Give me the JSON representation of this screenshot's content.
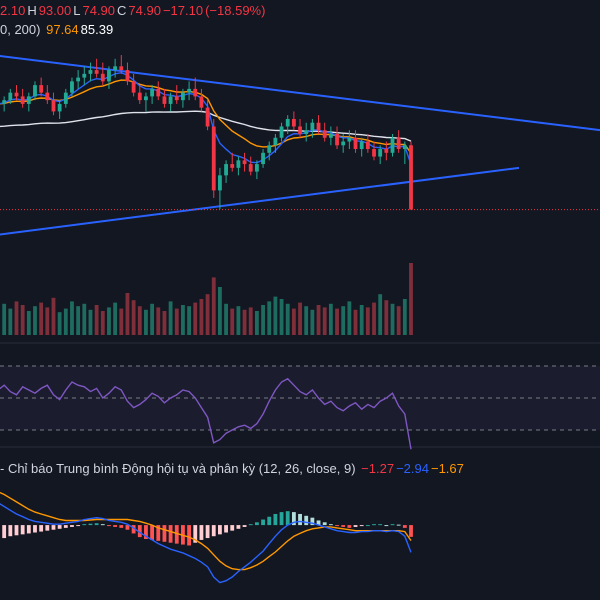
{
  "legend": {
    "ohlc": [
      {
        "text": "2.10",
        "color": "#f23645"
      },
      {
        "text": "H",
        "color": "#d1d4dc"
      },
      {
        "text": "93.00",
        "color": "#f23645"
      },
      {
        "text": "L",
        "color": "#d1d4dc"
      },
      {
        "text": "74.90",
        "color": "#f23645"
      },
      {
        "text": "C",
        "color": "#d1d4dc"
      },
      {
        "text": "74.90",
        "color": "#f23645"
      },
      {
        "text": "−17.10",
        "color": "#f23645"
      },
      {
        "text": "(−18.59%)",
        "color": "#f23645"
      }
    ],
    "ma_params": "0, 200)",
    "ma_values": [
      {
        "text": "97.64",
        "color": "#ff9800"
      },
      {
        "text": "85.39",
        "color": "#ffffff"
      }
    ],
    "macd_label": "- Chỉ báo Trung bình Động hội tụ và phân kỳ (12, 26, close, 9)",
    "macd_values": [
      {
        "text": "−1.27",
        "color": "#f23645"
      },
      {
        "text": "−2.94",
        "color": "#2962ff"
      },
      {
        "text": "−1.67",
        "color": "#ff9800"
      }
    ]
  },
  "chart_data": {
    "type": "candlestick",
    "colors": {
      "up": "#22ab94",
      "down": "#f23645",
      "volume_up": "#1e6b5f",
      "volume_down": "#7e2f3a",
      "ema_short": "#2962ff",
      "ema_long": "#ff9800",
      "ma200": "#e0e3eb",
      "trendline": "#2962ff",
      "rsi": "#7e57c2",
      "macd_line": "#2962ff",
      "signal_line": "#ff9800"
    },
    "price_range": [
      70,
      120
    ],
    "candles": [
      [
        104,
        106,
        102,
        103
      ],
      [
        103,
        105,
        101,
        104
      ],
      [
        104,
        107,
        103,
        106
      ],
      [
        106,
        108,
        104,
        105
      ],
      [
        105,
        107,
        102,
        103
      ],
      [
        103,
        106,
        101,
        105
      ],
      [
        105,
        109,
        104,
        108
      ],
      [
        108,
        110,
        105,
        106
      ],
      [
        106,
        108,
        103,
        104
      ],
      [
        104,
        106,
        100,
        101
      ],
      [
        101,
        104,
        99,
        103
      ],
      [
        103,
        107,
        102,
        106
      ],
      [
        106,
        110,
        105,
        109
      ],
      [
        109,
        112,
        107,
        110
      ],
      [
        110,
        113,
        108,
        111
      ],
      [
        111,
        114,
        109,
        112
      ],
      [
        112,
        115,
        110,
        111
      ],
      [
        111,
        114,
        108,
        109
      ],
      [
        109,
        113,
        107,
        112
      ],
      [
        112,
        115,
        110,
        113
      ],
      [
        113,
        116,
        111,
        112
      ],
      [
        112,
        114,
        108,
        109
      ],
      [
        109,
        111,
        105,
        106
      ],
      [
        106,
        108,
        103,
        104
      ],
      [
        104,
        106,
        101,
        105
      ],
      [
        105,
        108,
        103,
        107
      ],
      [
        107,
        109,
        104,
        105
      ],
      [
        105,
        107,
        102,
        103
      ],
      [
        103,
        106,
        101,
        105
      ],
      [
        105,
        108,
        103,
        104
      ],
      [
        104,
        107,
        102,
        106
      ],
      [
        106,
        109,
        104,
        107
      ],
      [
        107,
        110,
        104,
        105
      ],
      [
        105,
        107,
        101,
        102
      ],
      [
        102,
        104,
        96,
        97
      ],
      [
        97,
        99,
        78,
        80
      ],
      [
        80,
        86,
        75,
        84
      ],
      [
        84,
        88,
        82,
        87
      ],
      [
        87,
        90,
        85,
        86
      ],
      [
        86,
        89,
        84,
        88
      ],
      [
        88,
        90,
        85,
        87
      ],
      [
        87,
        89,
        84,
        85
      ],
      [
        85,
        88,
        83,
        87
      ],
      [
        87,
        91,
        86,
        90
      ],
      [
        90,
        93,
        88,
        92
      ],
      [
        92,
        95,
        90,
        94
      ],
      [
        94,
        98,
        93,
        97
      ],
      [
        97,
        100,
        95,
        99
      ],
      [
        99,
        101,
        96,
        97
      ],
      [
        97,
        99,
        94,
        95
      ],
      [
        95,
        98,
        93,
        96
      ],
      [
        96,
        99,
        94,
        98
      ],
      [
        98,
        100,
        95,
        96
      ],
      [
        96,
        98,
        93,
        94
      ],
      [
        94,
        97,
        92,
        95
      ],
      [
        95,
        97,
        91,
        92
      ],
      [
        92,
        95,
        90,
        93
      ],
      [
        93,
        96,
        91,
        94
      ],
      [
        94,
        96,
        90,
        91
      ],
      [
        91,
        94,
        89,
        93
      ],
      [
        93,
        95,
        90,
        91
      ],
      [
        91,
        93,
        88,
        89
      ],
      [
        89,
        92,
        87,
        91
      ],
      [
        91,
        93,
        88,
        90
      ],
      [
        90,
        95,
        89,
        94
      ],
      [
        94,
        96,
        90,
        91
      ],
      [
        91,
        93,
        87,
        92
      ],
      [
        92,
        93,
        74.9,
        74.9
      ]
    ],
    "volume": [
      30,
      26,
      22,
      28,
      25,
      20,
      24,
      27,
      23,
      31,
      19,
      22,
      28,
      24,
      26,
      21,
      25,
      20,
      23,
      27,
      22,
      35,
      29,
      24,
      21,
      26,
      23,
      20,
      28,
      22,
      25,
      24,
      27,
      30,
      34,
      48,
      40,
      26,
      22,
      24,
      21,
      23,
      20,
      25,
      28,
      32,
      30,
      26,
      22,
      27,
      24,
      21,
      25,
      23,
      26,
      22,
      24,
      28,
      21,
      25,
      23,
      27,
      34,
      29,
      26,
      24,
      30,
      60
    ],
    "rsi": [
      55,
      58,
      54,
      52,
      57,
      55,
      53,
      56,
      58,
      52,
      49,
      55,
      60,
      58,
      57,
      54,
      56,
      50,
      53,
      57,
      55,
      48,
      44,
      46,
      49,
      53,
      51,
      47,
      50,
      52,
      55,
      54,
      50,
      44,
      38,
      22,
      24,
      28,
      30,
      32,
      33,
      31,
      34,
      40,
      48,
      55,
      60,
      62,
      58,
      54,
      52,
      55,
      50,
      46,
      48,
      44,
      42,
      45,
      47,
      43,
      46,
      44,
      48,
      50,
      53,
      45,
      40,
      18
    ],
    "rsi_bands": [
      70,
      50,
      30
    ],
    "macd_hist": [
      -1.6,
      -1.4,
      -1.2,
      -1.1,
      -1.0,
      -0.9,
      -0.8,
      -0.7,
      -0.6,
      -0.5,
      -0.4,
      -0.3,
      -0.2,
      -0.1,
      0.1,
      0.15,
      0.2,
      0.1,
      -0.1,
      -0.2,
      -0.3,
      -0.5,
      -0.9,
      -1.3,
      -1.5,
      -1.6,
      -1.7,
      -1.8,
      -1.9,
      -2.0,
      -2.1,
      -2.2,
      -1.9,
      -1.6,
      -1.4,
      -1.2,
      -1.0,
      -0.8,
      -0.6,
      -0.4,
      -0.2,
      0.1,
      0.3,
      0.6,
      0.9,
      1.2,
      1.4,
      1.5,
      1.4,
      1.2,
      1.0,
      0.8,
      0.5,
      0.3,
      0.1,
      -0.1,
      -0.2,
      -0.3,
      -0.2,
      -0.1,
      0.0,
      0.1,
      0.1,
      0.0,
      0.1,
      0.05,
      -0.3,
      -1.27
    ],
    "macd_line": [
      2.4,
      2.0,
      1.6,
      1.2,
      0.9,
      0.6,
      0.4,
      0.3,
      0.2,
      0.1,
      0.1,
      0.2,
      0.3,
      0.4,
      0.6,
      0.7,
      0.8,
      0.7,
      0.5,
      0.4,
      0.3,
      0.1,
      -0.3,
      -0.8,
      -1.2,
      -1.6,
      -2.0,
      -2.3,
      -2.6,
      -2.8,
      -3.0,
      -3.3,
      -3.6,
      -4.0,
      -4.5,
      -5.6,
      -6.2,
      -6.0,
      -5.6,
      -5.0,
      -4.5,
      -4.0,
      -3.4,
      -2.8,
      -2.0,
      -1.2,
      -0.5,
      0.0,
      0.3,
      0.4,
      0.3,
      0.2,
      0.0,
      -0.2,
      -0.4,
      -0.6,
      -0.7,
      -0.8,
      -0.8,
      -0.7,
      -0.7,
      -0.6,
      -0.6,
      -0.7,
      -0.6,
      -0.7,
      -1.2,
      -2.94
    ],
    "signal_line": [
      3.6,
      3.3,
      2.9,
      2.5,
      2.1,
      1.7,
      1.4,
      1.2,
      1.0,
      0.8,
      0.6,
      0.5,
      0.5,
      0.5,
      0.5,
      0.55,
      0.6,
      0.6,
      0.6,
      0.6,
      0.6,
      0.6,
      0.5,
      0.4,
      0.2,
      0.0,
      -0.3,
      -0.5,
      -0.7,
      -0.9,
      -1.1,
      -1.3,
      -1.6,
      -2.0,
      -2.5,
      -3.2,
      -3.9,
      -4.4,
      -4.7,
      -4.8,
      -4.8,
      -4.6,
      -4.3,
      -3.9,
      -3.4,
      -2.9,
      -2.3,
      -1.7,
      -1.2,
      -0.9,
      -0.6,
      -0.4,
      -0.3,
      -0.2,
      -0.2,
      -0.3,
      -0.4,
      -0.5,
      -0.6,
      -0.6,
      -0.6,
      -0.6,
      -0.6,
      -0.6,
      -0.6,
      -0.6,
      -0.7,
      -1.67
    ],
    "macd_range": [
      -7,
      4
    ]
  }
}
